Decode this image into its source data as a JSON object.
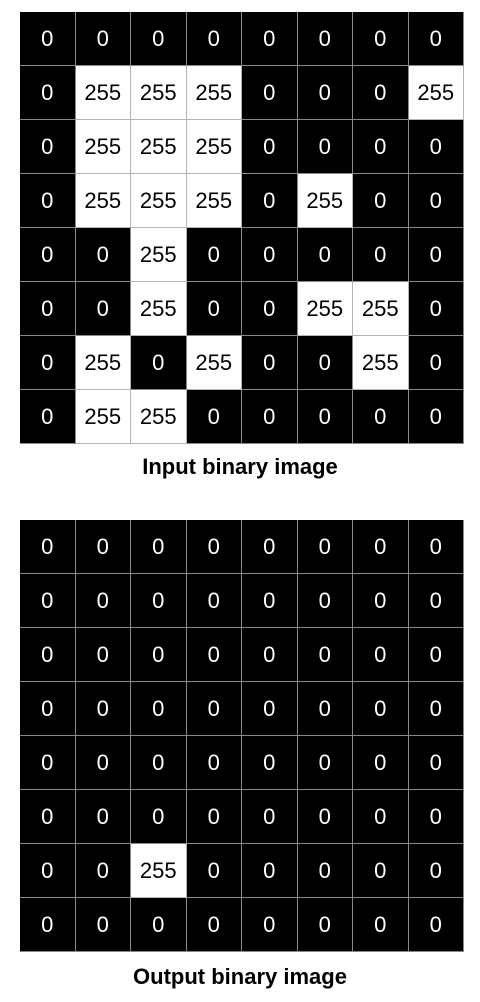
{
  "input": {
    "caption": "Input binary image",
    "grid": [
      [
        0,
        0,
        0,
        0,
        0,
        0,
        0,
        0
      ],
      [
        0,
        255,
        255,
        255,
        0,
        0,
        0,
        255
      ],
      [
        0,
        255,
        255,
        255,
        0,
        0,
        0,
        0
      ],
      [
        0,
        255,
        255,
        255,
        0,
        255,
        0,
        0
      ],
      [
        0,
        0,
        255,
        0,
        0,
        0,
        0,
        0
      ],
      [
        0,
        0,
        255,
        0,
        0,
        255,
        255,
        0
      ],
      [
        0,
        255,
        0,
        255,
        0,
        0,
        255,
        0
      ],
      [
        0,
        255,
        255,
        0,
        0,
        0,
        0,
        0
      ]
    ]
  },
  "output": {
    "caption": "Output binary image",
    "grid": [
      [
        0,
        0,
        0,
        0,
        0,
        0,
        0,
        0
      ],
      [
        0,
        0,
        0,
        0,
        0,
        0,
        0,
        0
      ],
      [
        0,
        0,
        0,
        0,
        0,
        0,
        0,
        0
      ],
      [
        0,
        0,
        0,
        0,
        0,
        0,
        0,
        0
      ],
      [
        0,
        0,
        0,
        0,
        0,
        0,
        0,
        0
      ],
      [
        0,
        0,
        0,
        0,
        0,
        0,
        0,
        0
      ],
      [
        0,
        0,
        255,
        0,
        0,
        0,
        0,
        0
      ],
      [
        0,
        0,
        0,
        0,
        0,
        0,
        0,
        0
      ]
    ]
  },
  "colors": {
    "on_background": "#ffffff",
    "off_background": "#000000"
  }
}
